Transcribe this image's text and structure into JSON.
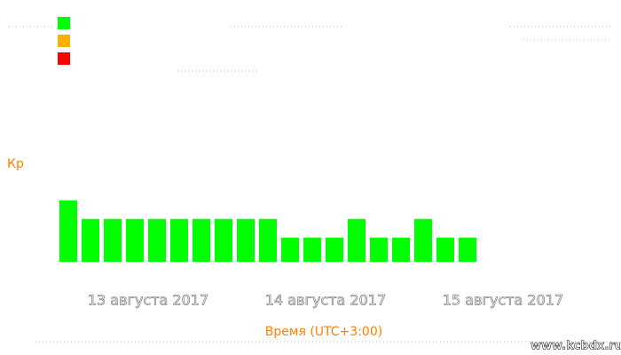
{
  "chart_data": {
    "type": "bar",
    "ylabel": "Кр",
    "xlabel": "Время (UTC+3:00)",
    "categories": [
      null,
      null,
      null,
      null,
      null,
      null,
      null,
      null,
      null,
      null,
      null,
      null,
      null,
      null,
      null,
      null,
      null,
      null,
      null
    ],
    "day_labels": [
      "13 августа 2017",
      "14 августа 2017",
      "15 августа 2017"
    ],
    "values": [
      3.3,
      2.3,
      2.3,
      2.3,
      2.3,
      2.3,
      2.3,
      2.3,
      2.3,
      2.3,
      1.3,
      1.3,
      1.3,
      2.3,
      1.3,
      1.3,
      2.3,
      1.3,
      1.3
    ],
    "color": "#00ff00",
    "ylim": [
      0,
      9
    ],
    "legend_colors": [
      "#00ff00",
      "#ffb000",
      "#ff0000"
    ],
    "watermark": "www.kcbdx.ru"
  }
}
